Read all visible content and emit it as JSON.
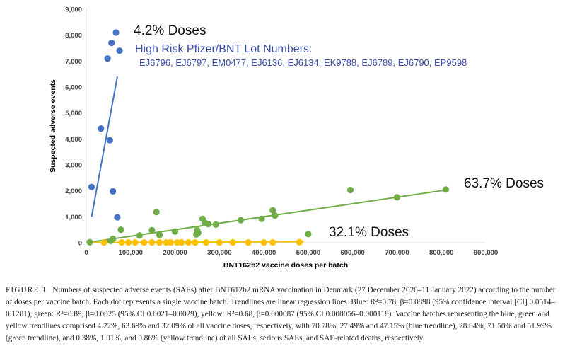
{
  "chart_data": {
    "type": "scatter",
    "xlabel": "BNT162b2 vaccine doses per batch",
    "ylabel": "Suspected adverse events",
    "xlim": [
      0,
      900000
    ],
    "ylim": [
      0,
      9000
    ],
    "x_ticks": [
      "0",
      "100,000",
      "200,000",
      "300,000",
      "400,000",
      "500,000",
      "600,000",
      "700,000",
      "800,000",
      "900,000"
    ],
    "y_ticks": [
      "0",
      "1,000",
      "2,000",
      "3,000",
      "4,000",
      "5,000",
      "6,000",
      "7,000",
      "8,000",
      "9,000"
    ],
    "annotations": {
      "blue_pct": "4.2% Doses",
      "green_pct": "63.7% Doses",
      "yellow_pct": "32.1% Doses",
      "blue_title": "High Risk Pfizer/BNT Lot Numbers:",
      "blue_lots": "EJ6796, EJ6797, EM0477, EJ6136, EJ6134, EK9788, EJ6789, EJ6790, EP9598"
    },
    "series": [
      {
        "color": "#4472c4",
        "points": [
          [
            12000,
            2150
          ],
          [
            33000,
            4400
          ],
          [
            48000,
            7100
          ],
          [
            53000,
            3950
          ],
          [
            57000,
            7700
          ],
          [
            60000,
            1980
          ],
          [
            67000,
            8100
          ],
          [
            70000,
            980
          ],
          [
            75000,
            7400
          ]
        ],
        "trendline": [
          [
            12000,
            1000
          ],
          [
            70000,
            6400
          ]
        ]
      },
      {
        "color": "#70ad47",
        "points": [
          [
            8000,
            20
          ],
          [
            55000,
            70
          ],
          [
            60000,
            150
          ],
          [
            78000,
            500
          ],
          [
            120000,
            280
          ],
          [
            148000,
            480
          ],
          [
            158000,
            1180
          ],
          [
            165000,
            300
          ],
          [
            200000,
            430
          ],
          [
            248000,
            320
          ],
          [
            250000,
            480
          ],
          [
            252000,
            380
          ],
          [
            262000,
            920
          ],
          [
            268000,
            760
          ],
          [
            275000,
            720
          ],
          [
            292000,
            700
          ],
          [
            348000,
            870
          ],
          [
            395000,
            920
          ],
          [
            420000,
            1250
          ],
          [
            425000,
            1050
          ],
          [
            500000,
            330
          ],
          [
            595000,
            2030
          ],
          [
            700000,
            1750
          ],
          [
            810000,
            2050
          ]
        ],
        "trendline": [
          [
            0,
            0
          ],
          [
            810000,
            2030
          ]
        ]
      },
      {
        "color": "#ffc000",
        "points": [
          [
            40000,
            10
          ],
          [
            80000,
            15
          ],
          [
            95000,
            10
          ],
          [
            110000,
            10
          ],
          [
            130000,
            10
          ],
          [
            148000,
            15
          ],
          [
            165000,
            10
          ],
          [
            180000,
            10
          ],
          [
            190000,
            10
          ],
          [
            205000,
            10
          ],
          [
            215000,
            10
          ],
          [
            230000,
            10
          ],
          [
            245000,
            10
          ],
          [
            270000,
            10
          ],
          [
            300000,
            10
          ],
          [
            330000,
            15
          ],
          [
            365000,
            10
          ],
          [
            400000,
            10
          ],
          [
            420000,
            10
          ],
          [
            480000,
            20
          ]
        ],
        "trendline": [
          [
            0,
            5
          ],
          [
            490000,
            45
          ]
        ]
      }
    ]
  },
  "caption": {
    "label": "FIGURE 1",
    "text": "Numbers of suspected adverse events (SAEs) after BNT612b2 mRNA vaccination in Denmark (27 December 2020–11 January 2022) according to the number of doses per vaccine batch. Each dot represents a single vaccine batch. Trendlines are linear regression lines. Blue: R²=0.78, β=0.0898 (95% confidence interval [CI] 0.0514–0.1281), green: R²=0.89, β=0.0025 (95% CI 0.0021–0.0029), yellow: R²=0.68, β=0.000087 (95% CI 0.000056–0.000118). Vaccine batches representing the blue, green and yellow trendlines comprised 4.22%, 63.69% and 32.09% of all vaccine doses, respectively, with 70.78%, 27.49% and 47.15% (blue trendline), 28.84%, 71.50% and 51.99% (green trendline), and 0.38%, 1.01%, and 0.86% (yellow trendline) of all SAEs, serious SAEs, and SAE-related deaths, respectively."
  }
}
